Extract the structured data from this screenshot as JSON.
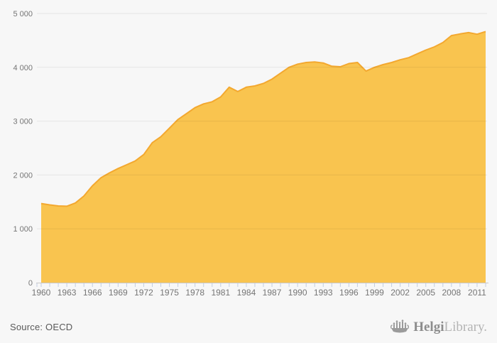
{
  "source_note": "Source: OECD",
  "logo": {
    "icon": "ship-bar-chart-icon",
    "text_bold": "Helgi",
    "text_light": "Library."
  },
  "colors": {
    "background": "#f7f7f7",
    "area_fill": "#f9c44f",
    "area_stroke": "#f3a82f",
    "grid": "rgba(0,0,0,0.07)",
    "axis_line": "#c9c9c9",
    "tick": "#c3cee0",
    "tick_label": "#757575",
    "logo_gray": "#9b9b9b"
  },
  "chart_data": {
    "type": "area",
    "title": "",
    "xlabel": "",
    "ylabel": "",
    "legend": "none",
    "grid": true,
    "ylim": [
      0,
      5000
    ],
    "y_ticks": [
      0,
      1000,
      2000,
      3000,
      4000,
      5000
    ],
    "y_tick_labels": [
      "0",
      "1 000",
      "2 000",
      "3 000",
      "4 000",
      "5 000"
    ],
    "x_tick_years_labeled": [
      1960,
      1963,
      1966,
      1969,
      1972,
      1975,
      1978,
      1981,
      1984,
      1987,
      1990,
      1993,
      1996,
      1999,
      2002,
      2005,
      2008,
      2011
    ],
    "x": [
      1960,
      1961,
      1962,
      1963,
      1964,
      1965,
      1966,
      1967,
      1968,
      1969,
      1970,
      1971,
      1972,
      1973,
      1974,
      1975,
      1976,
      1977,
      1978,
      1979,
      1980,
      1981,
      1982,
      1983,
      1984,
      1985,
      1986,
      1987,
      1988,
      1989,
      1990,
      1991,
      1992,
      1993,
      1994,
      1995,
      1996,
      1997,
      1998,
      1999,
      2000,
      2001,
      2002,
      2003,
      2004,
      2005,
      2006,
      2007,
      2008,
      2009,
      2010,
      2011,
      2012
    ],
    "values": [
      1470,
      1445,
      1425,
      1420,
      1480,
      1610,
      1800,
      1950,
      2040,
      2120,
      2190,
      2260,
      2380,
      2600,
      2710,
      2870,
      3030,
      3140,
      3250,
      3320,
      3360,
      3450,
      3630,
      3550,
      3630,
      3655,
      3700,
      3780,
      3890,
      4000,
      4060,
      4090,
      4100,
      4080,
      4020,
      4010,
      4070,
      4090,
      3930,
      4000,
      4050,
      4090,
      4140,
      4180,
      4250,
      4320,
      4380,
      4460,
      4590,
      4620,
      4645,
      4615,
      4665
    ]
  }
}
